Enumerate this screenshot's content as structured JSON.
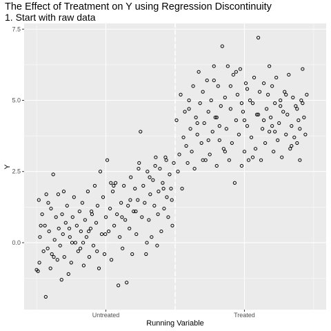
{
  "title": "The Effect of Treatment on Y using Regression Discontinuity",
  "subtitle": "1. Start with raw data",
  "chart_data": {
    "type": "scatter",
    "xlabel": "Running Variable",
    "ylabel": "Y",
    "x_ticks": [
      {
        "value": 0.25,
        "label": "Untreated"
      },
      {
        "value": 0.75,
        "label": "Treated"
      }
    ],
    "y_ticks": [
      {
        "value": 0,
        "label": "0.0"
      },
      {
        "value": 2.5,
        "label": "2.5"
      },
      {
        "value": 5,
        "label": "5.0"
      },
      {
        "value": 7.5,
        "label": "7.5"
      }
    ],
    "xlim": [
      -0.045,
      1.045
    ],
    "ylim": [
      -2.35,
      7.7
    ],
    "cutoff": 0.5,
    "grid": true,
    "background": "#ebebeb",
    "grid_color": "#ffffff",
    "point_color": "#000000",
    "cutoff_line_color": "#ffffff",
    "points": [
      [
        0.005,
        -1.0
      ],
      [
        0.008,
        1.5
      ],
      [
        0.01,
        -0.7
      ],
      [
        0.012,
        0.2
      ],
      [
        0.02,
        1.0
      ],
      [
        0.025,
        -0.3
      ],
      [
        0.03,
        0.6
      ],
      [
        0.033,
        -1.9
      ],
      [
        0.035,
        1.7
      ],
      [
        0.04,
        -0.2
      ],
      [
        0.045,
        0.4
      ],
      [
        0.05,
        -0.9
      ],
      [
        0.052,
        1.2
      ],
      [
        0.055,
        -0.4
      ],
      [
        0.06,
        2.4
      ],
      [
        0.065,
        0.1
      ],
      [
        0.07,
        0.9
      ],
      [
        0.075,
        -0.6
      ],
      [
        0.078,
        1.7
      ],
      [
        0.08,
        0.5
      ],
      [
        0.085,
        -0.1
      ],
      [
        0.09,
        -1.3
      ],
      [
        0.092,
        1.0
      ],
      [
        0.095,
        0.3
      ],
      [
        0.1,
        -0.5
      ],
      [
        0.105,
        0.7
      ],
      [
        0.11,
        1.3
      ],
      [
        0.115,
        -1.1
      ],
      [
        0.12,
        0.2
      ],
      [
        0.125,
        -0.7
      ],
      [
        0.13,
        0.9
      ],
      [
        0.135,
        1.6
      ],
      [
        0.14,
        0.0
      ],
      [
        0.145,
        0.6
      ],
      [
        0.15,
        -0.3
      ],
      [
        0.155,
        1.1
      ],
      [
        0.16,
        0.4
      ],
      [
        0.165,
        1.4
      ],
      [
        0.17,
        -0.8
      ],
      [
        0.175,
        0.8
      ],
      [
        0.18,
        0.2
      ],
      [
        0.185,
        1.8
      ],
      [
        0.19,
        -0.5
      ],
      [
        0.195,
        0.5
      ],
      [
        0.2,
        1.0
      ],
      [
        0.205,
        -0.1
      ],
      [
        0.21,
        2.0
      ],
      [
        0.215,
        0.7
      ],
      [
        0.22,
        1.3
      ],
      [
        0.225,
        -0.9
      ],
      [
        0.23,
        2.5
      ],
      [
        0.235,
        0.3
      ],
      [
        0.24,
        1.6
      ],
      [
        0.245,
        -0.4
      ],
      [
        0.25,
        0.9
      ],
      [
        0.255,
        2.9
      ],
      [
        0.26,
        0.4
      ],
      [
        0.265,
        1.2
      ],
      [
        0.27,
        -0.6
      ],
      [
        0.275,
        1.8
      ],
      [
        0.28,
        0.6
      ],
      [
        0.285,
        2.1
      ],
      [
        0.29,
        1.0
      ],
      [
        0.295,
        -1.5
      ],
      [
        0.3,
        0.2
      ],
      [
        0.305,
        1.4
      ],
      [
        0.31,
        -0.2
      ],
      [
        0.315,
        2.0
      ],
      [
        0.32,
        0.8
      ],
      [
        0.325,
        -1.4
      ],
      [
        0.33,
        1.3
      ],
      [
        0.335,
        0.5
      ],
      [
        0.34,
        2.3
      ],
      [
        0.345,
        -0.4
      ],
      [
        0.35,
        1.1
      ],
      [
        0.355,
        1.9
      ],
      [
        0.36,
        0.3
      ],
      [
        0.365,
        1.5
      ],
      [
        0.37,
        2.8
      ],
      [
        0.375,
        3.9
      ],
      [
        0.38,
        0.9
      ],
      [
        0.385,
        2.0
      ],
      [
        0.39,
        1.4
      ],
      [
        0.395,
        -0.4
      ],
      [
        0.4,
        2.5
      ],
      [
        0.405,
        0.8
      ],
      [
        0.41,
        1.7
      ],
      [
        0.415,
        0.2
      ],
      [
        0.42,
        2.2
      ],
      [
        0.425,
        1.3
      ],
      [
        0.43,
        3.0
      ],
      [
        0.435,
        -0.1
      ],
      [
        0.44,
        1.8
      ],
      [
        0.445,
        2.6
      ],
      [
        0.45,
        0.4
      ],
      [
        0.455,
        2.1
      ],
      [
        0.46,
        1.2
      ],
      [
        0.465,
        3.0
      ],
      [
        0.47,
        1.6
      ],
      [
        0.475,
        0.9
      ],
      [
        0.48,
        2.4
      ],
      [
        0.485,
        1.9
      ],
      [
        0.49,
        0.6
      ],
      [
        0.495,
        2.8
      ],
      [
        0.0,
        -0.95
      ],
      [
        0.015,
        0.6
      ],
      [
        0.042,
        1.4
      ],
      [
        0.062,
        -0.5
      ],
      [
        0.098,
        1.8
      ],
      [
        0.128,
        0.0
      ],
      [
        0.158,
        -0.2
      ],
      [
        0.188,
        0.4
      ],
      [
        0.218,
        -0.3
      ],
      [
        0.248,
        0.3
      ],
      [
        0.278,
        2.0
      ],
      [
        0.308,
        0.9
      ],
      [
        0.338,
        1.5
      ],
      [
        0.368,
        2.6
      ],
      [
        0.398,
        0.0
      ],
      [
        0.428,
        2.7
      ],
      [
        0.458,
        1.9
      ],
      [
        0.488,
        1.5
      ],
      [
        0.168,
        0.0
      ],
      [
        0.198,
        1.1
      ],
      [
        0.268,
        2.1
      ],
      [
        0.358,
        1.1
      ],
      [
        0.408,
        2.3
      ],
      [
        0.438,
        1.0
      ],
      [
        0.468,
        2.9
      ],
      [
        0.118,
        0.5
      ],
      [
        0.505,
        4.3
      ],
      [
        0.51,
        2.5
      ],
      [
        0.515,
        3.1
      ],
      [
        0.52,
        5.2
      ],
      [
        0.525,
        1.9
      ],
      [
        0.53,
        3.7
      ],
      [
        0.535,
        4.6
      ],
      [
        0.54,
        3.4
      ],
      [
        0.545,
        2.8
      ],
      [
        0.55,
        5.0
      ],
      [
        0.555,
        4.0
      ],
      [
        0.56,
        3.2
      ],
      [
        0.565,
        5.5
      ],
      [
        0.57,
        2.6
      ],
      [
        0.575,
        4.4
      ],
      [
        0.58,
        3.8
      ],
      [
        0.585,
        6.0
      ],
      [
        0.59,
        4.9
      ],
      [
        0.595,
        3.5
      ],
      [
        0.6,
        5.3
      ],
      [
        0.605,
        4.2
      ],
      [
        0.61,
        2.9
      ],
      [
        0.615,
        5.7
      ],
      [
        0.62,
        4.6
      ],
      [
        0.625,
        3.1
      ],
      [
        0.63,
        5.0
      ],
      [
        0.635,
        3.9
      ],
      [
        0.64,
        6.2
      ],
      [
        0.645,
        4.4
      ],
      [
        0.65,
        2.7
      ],
      [
        0.655,
        5.5
      ],
      [
        0.66,
        3.6
      ],
      [
        0.665,
        4.8
      ],
      [
        0.67,
        6.9
      ],
      [
        0.675,
        3.3
      ],
      [
        0.68,
        5.1
      ],
      [
        0.685,
        4.0
      ],
      [
        0.69,
        6.2
      ],
      [
        0.695,
        2.9
      ],
      [
        0.7,
        4.7
      ],
      [
        0.705,
        3.5
      ],
      [
        0.71,
        5.9
      ],
      [
        0.715,
        2.1
      ],
      [
        0.72,
        4.3
      ],
      [
        0.725,
        5.2
      ],
      [
        0.73,
        3.8
      ],
      [
        0.735,
        6.1
      ],
      [
        0.74,
        2.7
      ],
      [
        0.745,
        4.6
      ],
      [
        0.75,
        3.2
      ],
      [
        0.755,
        5.6
      ],
      [
        0.76,
        4.1
      ],
      [
        0.765,
        2.9
      ],
      [
        0.77,
        5.0
      ],
      [
        0.775,
        3.7
      ],
      [
        0.78,
        4.9
      ],
      [
        0.785,
        5.8
      ],
      [
        0.79,
        3.3
      ],
      [
        0.795,
        4.5
      ],
      [
        0.8,
        7.2
      ],
      [
        0.805,
        5.3
      ],
      [
        0.81,
        2.9
      ],
      [
        0.815,
        4.0
      ],
      [
        0.82,
        5.6
      ],
      [
        0.825,
        3.5
      ],
      [
        0.83,
        4.7
      ],
      [
        0.835,
        5.2
      ],
      [
        0.84,
        3.9
      ],
      [
        0.845,
        4.4
      ],
      [
        0.85,
        5.5
      ],
      [
        0.855,
        3.2
      ],
      [
        0.86,
        4.9
      ],
      [
        0.865,
        5.8
      ],
      [
        0.87,
        3.6
      ],
      [
        0.875,
        4.2
      ],
      [
        0.88,
        5.0
      ],
      [
        0.885,
        3.0
      ],
      [
        0.89,
        4.6
      ],
      [
        0.895,
        5.3
      ],
      [
        0.9,
        3.8
      ],
      [
        0.905,
        4.5
      ],
      [
        0.91,
        5.9
      ],
      [
        0.915,
        3.3
      ],
      [
        0.92,
        4.1
      ],
      [
        0.925,
        5.1
      ],
      [
        0.93,
        3.7
      ],
      [
        0.935,
        4.8
      ],
      [
        0.94,
        3.5
      ],
      [
        0.945,
        4.3
      ],
      [
        0.95,
        2.9
      ],
      [
        0.955,
        5.0
      ],
      [
        0.96,
        6.1
      ],
      [
        0.965,
        4.4
      ],
      [
        0.97,
        3.8
      ],
      [
        0.975,
        5.2
      ],
      [
        0.58,
        4.2
      ],
      [
        0.62,
        3.6
      ],
      [
        0.66,
        4.1
      ],
      [
        0.7,
        5.5
      ],
      [
        0.74,
        4.9
      ],
      [
        0.78,
        3.0
      ],
      [
        0.82,
        4.3
      ],
      [
        0.86,
        3.9
      ],
      [
        0.9,
        5.2
      ],
      [
        0.94,
        4.7
      ],
      [
        0.6,
        2.9
      ],
      [
        0.64,
        5.7
      ],
      [
        0.68,
        3.2
      ],
      [
        0.72,
        6.0
      ],
      [
        0.76,
        5.4
      ],
      [
        0.8,
        4.5
      ],
      [
        0.84,
        6.2
      ],
      [
        0.88,
        4.8
      ],
      [
        0.92,
        3.4
      ],
      [
        0.96,
        4.9
      ],
      [
        0.55,
        4.7
      ],
      [
        0.65,
        4.4
      ],
      [
        0.75,
        4.3
      ],
      [
        0.85,
        4.1
      ],
      [
        0.95,
        4.0
      ]
    ]
  }
}
